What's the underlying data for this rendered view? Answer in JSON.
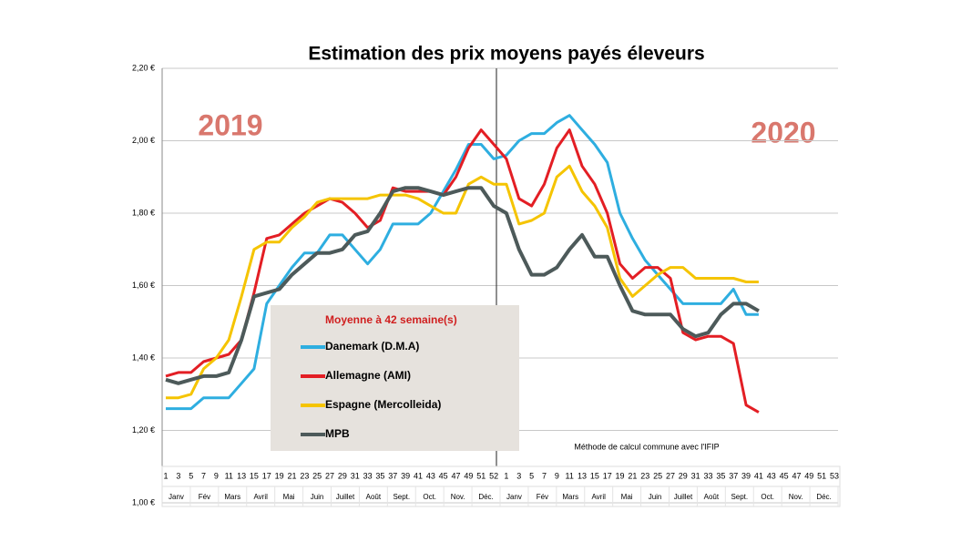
{
  "chart_data": {
    "type": "line",
    "title": "Estimation des prix moyens payés éleveurs",
    "annotations": [
      "2019",
      "2020"
    ],
    "legend_title": "Moyenne à  42 semaine(s)",
    "note": "Méthode de calcul commune avec l'IFIP",
    "categories": [
      "1",
      "3",
      "5",
      "7",
      "9",
      "11",
      "13",
      "15",
      "17",
      "19",
      "21",
      "23",
      "25",
      "27",
      "29",
      "31",
      "33",
      "35",
      "37",
      "39",
      "41",
      "43",
      "45",
      "47",
      "49",
      "51",
      "52",
      "1",
      "3",
      "5",
      "7",
      "9",
      "11",
      "13",
      "15",
      "17",
      "19",
      "21",
      "23",
      "25",
      "27",
      "29",
      "31",
      "33",
      "35",
      "37",
      "39",
      "41",
      "43",
      "45",
      "47",
      "49",
      "51",
      "53"
    ],
    "months": [
      "Janv",
      "Fév",
      "Mars",
      "Avril",
      "Mai",
      "Juin",
      "Juillet",
      "Août",
      "Sept.",
      "Oct.",
      "Nov.",
      "Déc.",
      "Janv",
      "Fév",
      "Mars",
      "Avril",
      "Mai",
      "Juin",
      "Juillet",
      "Août",
      "Sept.",
      "Oct.",
      "Nov.",
      "Déc."
    ],
    "ylim": [
      1.0,
      2.2
    ],
    "yticks": [
      {
        "value": 1.0,
        "label": "1,00 €"
      },
      {
        "value": 1.2,
        "label": "1,20 €"
      },
      {
        "value": 1.4,
        "label": "1,40 €"
      },
      {
        "value": 1.6,
        "label": "1,60 €"
      },
      {
        "value": 1.8,
        "label": "1,80 €"
      },
      {
        "value": 2.0,
        "label": "2,00 €"
      },
      {
        "value": 2.2,
        "label": "2,20 €"
      }
    ],
    "grid": true,
    "series": [
      {
        "name": "Danemark (D.M.A)",
        "color": "#2eaee0",
        "values": [
          1.26,
          1.26,
          1.26,
          1.29,
          1.29,
          1.29,
          1.33,
          1.37,
          1.55,
          1.6,
          1.65,
          1.69,
          1.69,
          1.74,
          1.74,
          1.7,
          1.66,
          1.7,
          1.77,
          1.77,
          1.77,
          1.8,
          1.86,
          1.92,
          1.99,
          1.99,
          1.95,
          1.96,
          2.0,
          2.02,
          2.02,
          2.05,
          2.07,
          2.03,
          1.99,
          1.94,
          1.8,
          1.73,
          1.67,
          1.63,
          1.59,
          1.55,
          1.55,
          1.55,
          1.55,
          1.59,
          1.52,
          1.52,
          null,
          null,
          null,
          null,
          null,
          null
        ]
      },
      {
        "name": "Allemagne (AMI)",
        "color": "#e31e24",
        "values": [
          1.35,
          1.36,
          1.36,
          1.39,
          1.4,
          1.41,
          1.45,
          1.58,
          1.73,
          1.74,
          1.77,
          1.8,
          1.82,
          1.84,
          1.83,
          1.8,
          1.76,
          1.78,
          1.87,
          1.86,
          1.86,
          1.86,
          1.85,
          1.9,
          1.98,
          2.03,
          1.99,
          1.95,
          1.84,
          1.82,
          1.88,
          1.98,
          2.03,
          1.93,
          1.88,
          1.8,
          1.66,
          1.62,
          1.65,
          1.65,
          1.62,
          1.47,
          1.45,
          1.46,
          1.46,
          1.44,
          1.27,
          1.25,
          null,
          null,
          null,
          null,
          null,
          null
        ]
      },
      {
        "name": "Espagne (Mercolleida)",
        "color": "#f5c400",
        "values": [
          1.29,
          1.29,
          1.3,
          1.37,
          1.4,
          1.45,
          1.57,
          1.7,
          1.72,
          1.72,
          1.76,
          1.79,
          1.83,
          1.84,
          1.84,
          1.84,
          1.84,
          1.85,
          1.85,
          1.85,
          1.84,
          1.82,
          1.8,
          1.8,
          1.88,
          1.9,
          1.88,
          1.88,
          1.77,
          1.78,
          1.8,
          1.9,
          1.93,
          1.86,
          1.82,
          1.76,
          1.62,
          1.57,
          1.6,
          1.63,
          1.65,
          1.65,
          1.62,
          1.62,
          1.62,
          1.62,
          1.61,
          1.61,
          null,
          null,
          null,
          null,
          null,
          null
        ]
      },
      {
        "name": "MPB",
        "color": "#4d5a5a",
        "values": [
          1.34,
          1.33,
          1.34,
          1.35,
          1.35,
          1.36,
          1.45,
          1.57,
          1.58,
          1.59,
          1.63,
          1.66,
          1.69,
          1.69,
          1.7,
          1.74,
          1.75,
          1.8,
          1.86,
          1.87,
          1.87,
          1.86,
          1.85,
          1.86,
          1.87,
          1.87,
          1.82,
          1.8,
          1.7,
          1.63,
          1.63,
          1.65,
          1.7,
          1.74,
          1.68,
          1.68,
          1.6,
          1.53,
          1.52,
          1.52,
          1.52,
          1.48,
          1.46,
          1.47,
          1.52,
          1.55,
          1.55,
          1.53,
          null,
          null,
          null,
          null,
          null,
          null
        ]
      }
    ]
  }
}
